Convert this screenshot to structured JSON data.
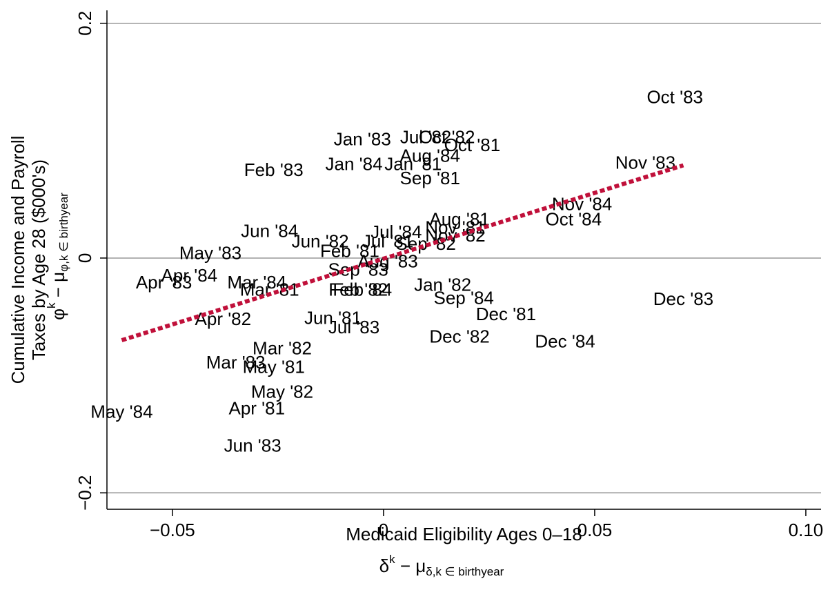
{
  "chart_data": {
    "type": "scatter",
    "x_label": "Medicaid Eligibility Ages 0–18",
    "x_sublabel": {
      "base": "δ",
      "sup": "k",
      "mid": " − μ",
      "sub": "δ,k ∈ birthyear"
    },
    "y_label": [
      "Cumulative Income and Payroll",
      "Taxes by Age 28 ($000's)"
    ],
    "y_sublabel": {
      "base": "φ",
      "sup": "k",
      "mid": " − μ",
      "sub": "φ,k ∈ birthyear"
    },
    "xlim": [
      -0.0655,
      0.1036
    ],
    "ylim": [
      -0.214,
      0.211
    ],
    "xticks": [
      {
        "value": -0.05,
        "label": "−0.05"
      },
      0,
      0.05,
      {
        "value": 0.1,
        "label": "0.10"
      }
    ],
    "yticks": [
      {
        "value": -0.2,
        "label": "−0.2"
      },
      0,
      0.2
    ],
    "grid": true,
    "grid_color": "#999999",
    "label_color": "#000000",
    "labels": [
      "Oct '83",
      "Jan '83",
      "Jul '82",
      "Oct '82",
      "Oct '81",
      "Aug '84",
      "Jan '84",
      "Jan '81",
      "Feb '83",
      "Sep '81",
      "Nov '83",
      "Nov '84",
      "Oct '84",
      "Aug '81",
      "Nov '81",
      "Jul '84",
      "Jun '84",
      "Nov '82",
      "Jun '82",
      "Jul '81",
      "Sep '82",
      "Feb '81",
      "May '83",
      "Aug '83",
      "Sep '83",
      "Apr '84",
      "Apr '83",
      "Mar '84",
      "Mar '81",
      "Feb '82",
      "Feb '84",
      "Jan '82",
      "Sep '84",
      "Dec '83",
      "Dec '81",
      "Apr '82",
      "Jun '81",
      "Jul '83",
      "Dec '82",
      "Dec '84",
      "Mar '82",
      "Mar '83",
      "May '81",
      "May '82",
      "May '84",
      "Apr '81",
      "Jun '83"
    ],
    "x": [
      0.069,
      -0.005,
      0.01,
      0.015,
      0.021,
      0.011,
      -0.007,
      0.007,
      -0.026,
      0.011,
      0.062,
      0.047,
      0.045,
      0.018,
      0.017,
      0.003,
      -0.027,
      0.017,
      -0.015,
      0.001,
      0.01,
      -0.008,
      -0.041,
      0.001,
      -0.006,
      -0.046,
      -0.052,
      -0.03,
      -0.027,
      -0.006,
      -0.005,
      0.014,
      0.019,
      0.071,
      0.029,
      -0.038,
      -0.012,
      -0.007,
      0.018,
      0.043,
      -0.024,
      -0.035,
      -0.026,
      -0.024,
      -0.062,
      -0.03,
      -0.031
    ],
    "values": [
      0.136,
      0.1,
      0.102,
      0.102,
      0.095,
      0.086,
      0.079,
      0.079,
      0.074,
      0.067,
      0.08,
      0.045,
      0.032,
      0.032,
      0.025,
      0.021,
      0.022,
      0.018,
      0.013,
      0.013,
      0.011,
      0.005,
      0.003,
      -0.004,
      -0.011,
      -0.016,
      -0.022,
      -0.022,
      -0.028,
      -0.028,
      -0.028,
      -0.024,
      -0.035,
      -0.036,
      -0.049,
      -0.053,
      -0.052,
      -0.06,
      -0.068,
      -0.072,
      -0.078,
      -0.09,
      -0.094,
      -0.115,
      -0.132,
      -0.129,
      -0.161
    ],
    "fit": {
      "x": [
        -0.062,
        0.071
      ],
      "y": [
        -0.07,
        0.079
      ],
      "color": "#c0103a"
    }
  }
}
